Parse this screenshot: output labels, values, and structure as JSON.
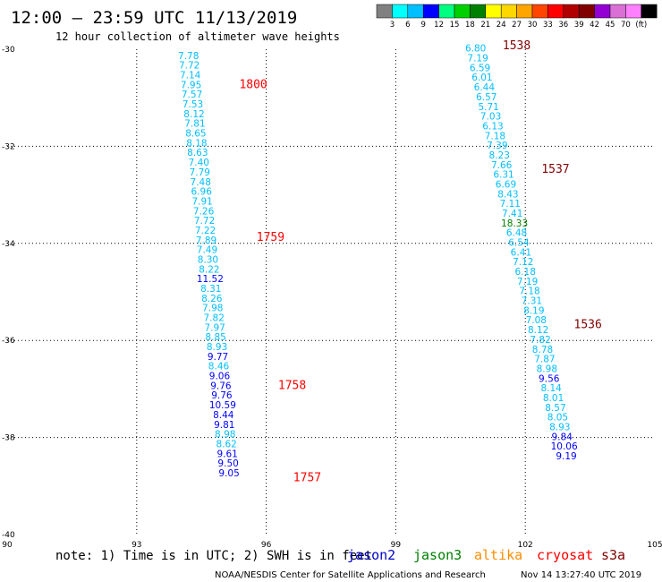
{
  "header": {
    "title": "12:00 – 23:59 UTC 11/13/2019",
    "subtitle": "12 hour collection of altimeter wave heights"
  },
  "color_scale": {
    "colors": [
      "#808080",
      "#00ffff",
      "#00bfff",
      "#0000ff",
      "#00ff80",
      "#00d000",
      "#008000",
      "#ffff00",
      "#ffd700",
      "#ffa500",
      "#ff4500",
      "#ff0000",
      "#b00000",
      "#800000",
      "#9400d3",
      "#da70d6",
      "#ff80ff",
      "#000000"
    ],
    "labels": [
      "3",
      "6",
      "9",
      "12",
      "15",
      "18",
      "21",
      "24",
      "27",
      "30",
      "33",
      "36",
      "39",
      "42",
      "45",
      "70",
      "(ft)"
    ]
  },
  "footer": {
    "note": "note: 1) Time is in UTC; 2) SWH is in feet",
    "satellites": [
      {
        "name": "jason2",
        "color": "#0000cc"
      },
      {
        "name": "jason3",
        "color": "#008000"
      },
      {
        "name": "altika",
        "color": "#ff8c00"
      },
      {
        "name": "cryosat",
        "color": "#ff0000"
      },
      {
        "name": "s3a",
        "color": "#800000"
      }
    ],
    "credit": "NOAA/NESDIS Center for Satellite Applications and Research",
    "timestamp": "Nov 14 13:27:40 UTC 2019"
  },
  "chart_data": {
    "type": "scatter",
    "xlim": [
      90,
      105
    ],
    "ylim": [
      -40,
      -30
    ],
    "x_ticks": [
      "90",
      "93",
      "96",
      "99",
      "102",
      "105"
    ],
    "y_ticks": [
      "-30",
      "-32",
      "-34",
      "-36",
      "-38",
      "-40"
    ],
    "grid": true,
    "series": [
      {
        "name": "cryosat",
        "color_key": "cryosat",
        "time_color": "#ff0000",
        "points": [
          {
            "x": 94.2,
            "y": -30.2,
            "v": "7.78",
            "c": "#00bfff"
          },
          {
            "x": 94.22,
            "y": -30.4,
            "v": "7.72",
            "c": "#00bfff"
          },
          {
            "x": 94.24,
            "y": -30.6,
            "v": "7.14",
            "c": "#00bfff"
          },
          {
            "x": 94.26,
            "y": -30.8,
            "v": "7.95",
            "c": "#00bfff"
          },
          {
            "x": 94.28,
            "y": -31.0,
            "v": "7.57",
            "c": "#00bfff"
          },
          {
            "x": 94.3,
            "y": -31.2,
            "v": "7.53",
            "c": "#00bfff"
          },
          {
            "x": 94.33,
            "y": -31.4,
            "v": "8.12",
            "c": "#00bfff"
          },
          {
            "x": 94.35,
            "y": -31.6,
            "v": "7.81",
            "c": "#00bfff"
          },
          {
            "x": 94.37,
            "y": -31.8,
            "v": "8.65",
            "c": "#00bfff"
          },
          {
            "x": 94.39,
            "y": -32.0,
            "v": "8.18",
            "c": "#00bfff"
          },
          {
            "x": 94.41,
            "y": -32.2,
            "v": "8.63",
            "c": "#00bfff"
          },
          {
            "x": 94.44,
            "y": -32.4,
            "v": "7.40",
            "c": "#00bfff"
          },
          {
            "x": 94.46,
            "y": -32.6,
            "v": "7.79",
            "c": "#00bfff"
          },
          {
            "x": 94.48,
            "y": -32.8,
            "v": "7.48",
            "c": "#00bfff"
          },
          {
            "x": 94.5,
            "y": -33.0,
            "v": "6.96",
            "c": "#00bfff"
          },
          {
            "x": 94.52,
            "y": -33.2,
            "v": "7.91",
            "c": "#00bfff"
          },
          {
            "x": 94.55,
            "y": -33.4,
            "v": "7.26",
            "c": "#00bfff"
          },
          {
            "x": 94.57,
            "y": -33.6,
            "v": "7.72",
            "c": "#00bfff"
          },
          {
            "x": 94.59,
            "y": -33.8,
            "v": "7.22",
            "c": "#00bfff"
          },
          {
            "x": 94.61,
            "y": -34.0,
            "v": "7.89",
            "c": "#00bfff"
          },
          {
            "x": 94.63,
            "y": -34.2,
            "v": "7.49",
            "c": "#00bfff"
          },
          {
            "x": 94.65,
            "y": -34.4,
            "v": "8.30",
            "c": "#00bfff"
          },
          {
            "x": 94.68,
            "y": -34.6,
            "v": "8.22",
            "c": "#00bfff"
          },
          {
            "x": 94.7,
            "y": -34.8,
            "v": "11.52",
            "c": "#0000ff"
          },
          {
            "x": 94.72,
            "y": -35.0,
            "v": "8.31",
            "c": "#00bfff"
          },
          {
            "x": 94.74,
            "y": -35.2,
            "v": "8.26",
            "c": "#00bfff"
          },
          {
            "x": 94.76,
            "y": -35.4,
            "v": "7.98",
            "c": "#00bfff"
          },
          {
            "x": 94.79,
            "y": -35.6,
            "v": "7.82",
            "c": "#00bfff"
          },
          {
            "x": 94.81,
            "y": -35.8,
            "v": "7.97",
            "c": "#00bfff"
          },
          {
            "x": 94.83,
            "y": -36.0,
            "v": "8.85",
            "c": "#00bfff"
          },
          {
            "x": 94.86,
            "y": -36.2,
            "v": "8.93",
            "c": "#00bfff"
          },
          {
            "x": 94.88,
            "y": -36.4,
            "v": "9.77",
            "c": "#0000ff"
          },
          {
            "x": 94.9,
            "y": -36.6,
            "v": "8.46",
            "c": "#00bfff"
          },
          {
            "x": 94.92,
            "y": -36.8,
            "v": "9.06",
            "c": "#0000ff"
          },
          {
            "x": 94.95,
            "y": -37.0,
            "v": "9.76",
            "c": "#0000ff"
          },
          {
            "x": 94.97,
            "y": -37.2,
            "v": "9.76",
            "c": "#0000ff"
          },
          {
            "x": 94.99,
            "y": -37.4,
            "v": "10.59",
            "c": "#0000ff"
          },
          {
            "x": 95.01,
            "y": -37.6,
            "v": "8.44",
            "c": "#0000ff"
          },
          {
            "x": 95.03,
            "y": -37.8,
            "v": "9.81",
            "c": "#0000ff"
          },
          {
            "x": 95.05,
            "y": -38.0,
            "v": "8.98",
            "c": "#00bfff"
          },
          {
            "x": 95.08,
            "y": -38.2,
            "v": "8.62",
            "c": "#00bfff"
          },
          {
            "x": 95.1,
            "y": -38.4,
            "v": "9.61",
            "c": "#0000ff"
          },
          {
            "x": 95.12,
            "y": -38.6,
            "v": "9.50",
            "c": "#0000ff"
          },
          {
            "x": 95.14,
            "y": -38.8,
            "v": "9.05",
            "c": "#0000ff"
          }
        ],
        "times": [
          {
            "label": "1800",
            "x": 95.7,
            "y": -30.8
          },
          {
            "label": "1759",
            "x": 96.1,
            "y": -33.95
          },
          {
            "label": "1758",
            "x": 96.6,
            "y": -37.0
          },
          {
            "label": "1757",
            "x": 96.95,
            "y": -38.9
          }
        ]
      },
      {
        "name": "s3a",
        "color_key": "s3a",
        "time_color": "#800000",
        "points": [
          {
            "x": 100.85,
            "y": -30.05,
            "v": "6.80",
            "c": "#00bfff"
          },
          {
            "x": 100.9,
            "y": -30.25,
            "v": "7.19",
            "c": "#00bfff"
          },
          {
            "x": 100.95,
            "y": -30.45,
            "v": "6.59",
            "c": "#00bfff"
          },
          {
            "x": 101.0,
            "y": -30.65,
            "v": "6.01",
            "c": "#00bfff"
          },
          {
            "x": 101.05,
            "y": -30.85,
            "v": "6.44",
            "c": "#00bfff"
          },
          {
            "x": 101.1,
            "y": -31.05,
            "v": "6.57",
            "c": "#00bfff"
          },
          {
            "x": 101.15,
            "y": -31.25,
            "v": "5.71",
            "c": "#00bfff"
          },
          {
            "x": 101.2,
            "y": -31.45,
            "v": "7.03",
            "c": "#00bfff"
          },
          {
            "x": 101.25,
            "y": -31.65,
            "v": "6.13",
            "c": "#00bfff"
          },
          {
            "x": 101.3,
            "y": -31.85,
            "v": "7.18",
            "c": "#00bfff"
          },
          {
            "x": 101.35,
            "y": -32.05,
            "v": "7.39",
            "c": "#00bfff"
          },
          {
            "x": 101.4,
            "y": -32.25,
            "v": "8.23",
            "c": "#00bfff"
          },
          {
            "x": 101.45,
            "y": -32.45,
            "v": "7.66",
            "c": "#00bfff"
          },
          {
            "x": 101.5,
            "y": -32.65,
            "v": "6.31",
            "c": "#00bfff"
          },
          {
            "x": 101.55,
            "y": -32.85,
            "v": "6.69",
            "c": "#00bfff"
          },
          {
            "x": 101.6,
            "y": -33.05,
            "v": "8.43",
            "c": "#00bfff"
          },
          {
            "x": 101.65,
            "y": -33.25,
            "v": "7.11",
            "c": "#00bfff"
          },
          {
            "x": 101.7,
            "y": -33.45,
            "v": "7.41",
            "c": "#00bfff"
          },
          {
            "x": 101.75,
            "y": -33.65,
            "v": "18.33",
            "c": "#008000"
          },
          {
            "x": 101.8,
            "y": -33.85,
            "v": "6.48",
            "c": "#00bfff"
          },
          {
            "x": 101.85,
            "y": -34.05,
            "v": "6.54",
            "c": "#00bfff"
          },
          {
            "x": 101.9,
            "y": -34.25,
            "v": "6.41",
            "c": "#00bfff"
          },
          {
            "x": 101.95,
            "y": -34.45,
            "v": "7.12",
            "c": "#00bfff"
          },
          {
            "x": 102.0,
            "y": -34.65,
            "v": "6.18",
            "c": "#00bfff"
          },
          {
            "x": 102.05,
            "y": -34.85,
            "v": "7.19",
            "c": "#00bfff"
          },
          {
            "x": 102.1,
            "y": -35.05,
            "v": "7.18",
            "c": "#00bfff"
          },
          {
            "x": 102.15,
            "y": -35.25,
            "v": "7.31",
            "c": "#00bfff"
          },
          {
            "x": 102.2,
            "y": -35.45,
            "v": "8.19",
            "c": "#00bfff"
          },
          {
            "x": 102.25,
            "y": -35.65,
            "v": "7.08",
            "c": "#00bfff"
          },
          {
            "x": 102.3,
            "y": -35.85,
            "v": "8.12",
            "c": "#00bfff"
          },
          {
            "x": 102.35,
            "y": -36.05,
            "v": "7.82",
            "c": "#00bfff"
          },
          {
            "x": 102.4,
            "y": -36.25,
            "v": "8.78",
            "c": "#00bfff"
          },
          {
            "x": 102.45,
            "y": -36.45,
            "v": "7.87",
            "c": "#00bfff"
          },
          {
            "x": 102.5,
            "y": -36.65,
            "v": "8.98",
            "c": "#00bfff"
          },
          {
            "x": 102.55,
            "y": -36.85,
            "v": "9.56",
            "c": "#0000ff"
          },
          {
            "x": 102.6,
            "y": -37.05,
            "v": "8.14",
            "c": "#00bfff"
          },
          {
            "x": 102.65,
            "y": -37.25,
            "v": "8.01",
            "c": "#00bfff"
          },
          {
            "x": 102.7,
            "y": -37.45,
            "v": "8.57",
            "c": "#00bfff"
          },
          {
            "x": 102.75,
            "y": -37.65,
            "v": "8.05",
            "c": "#00bfff"
          },
          {
            "x": 102.8,
            "y": -37.85,
            "v": "8.93",
            "c": "#00bfff"
          },
          {
            "x": 102.85,
            "y": -38.05,
            "v": "9.84",
            "c": "#0000ff"
          },
          {
            "x": 102.9,
            "y": -38.25,
            "v": "10.06",
            "c": "#0000ff"
          },
          {
            "x": 102.95,
            "y": -38.45,
            "v": "9.19",
            "c": "#0000ff"
          }
        ],
        "times": [
          {
            "label": "1538",
            "x": 101.8,
            "y": -30.0
          },
          {
            "label": "1537",
            "x": 102.7,
            "y": -32.55
          },
          {
            "label": "1536",
            "x": 103.45,
            "y": -35.75
          }
        ]
      }
    ]
  }
}
